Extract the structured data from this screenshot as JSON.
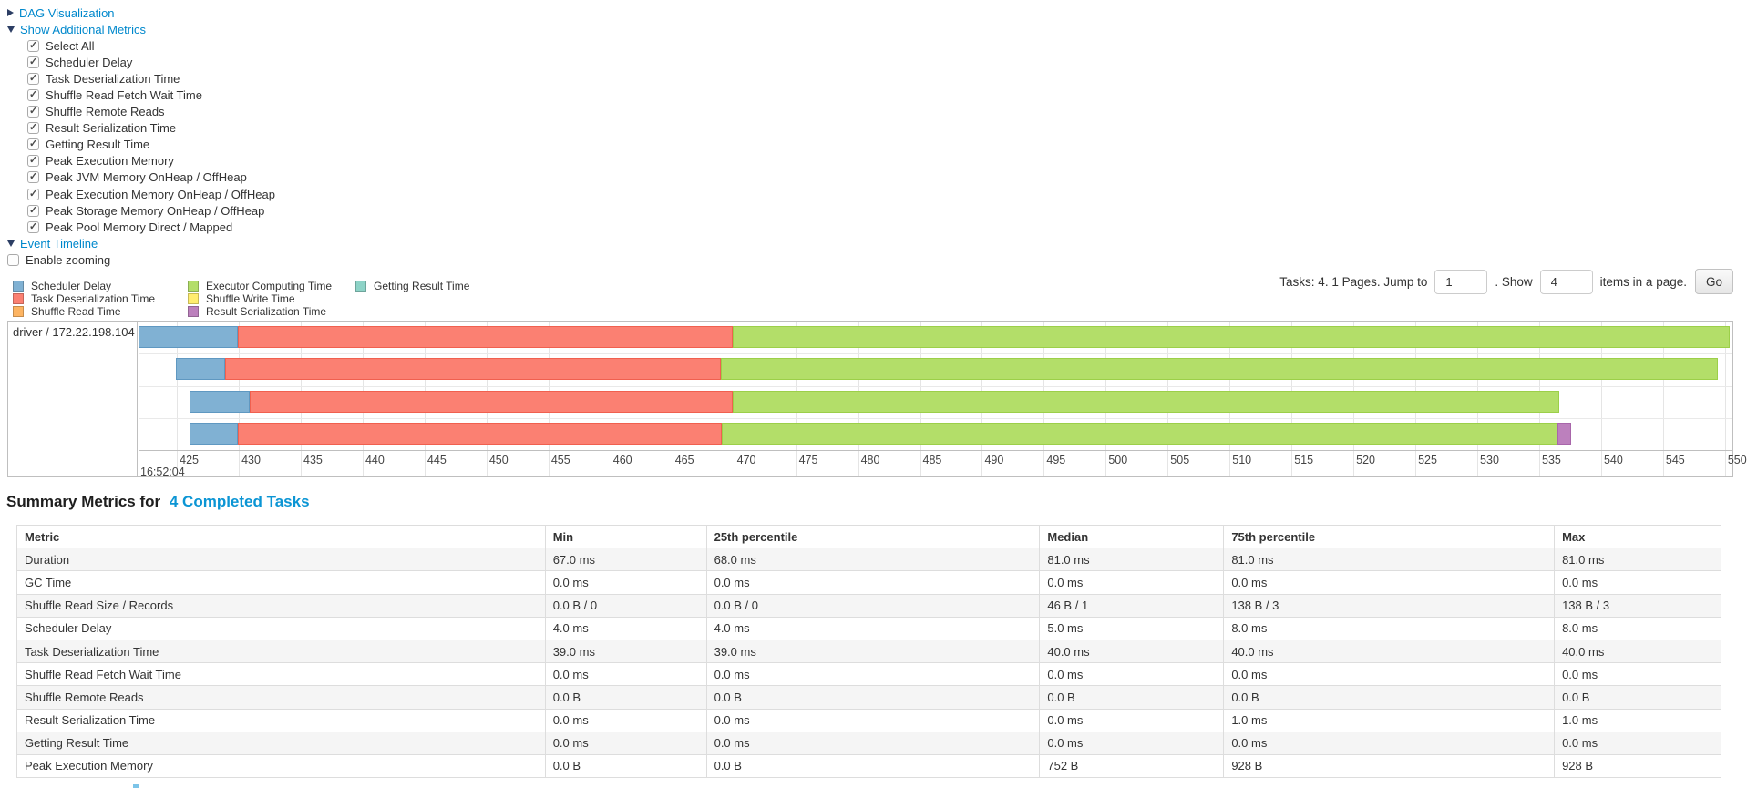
{
  "links": {
    "dag": "DAG Visualization",
    "metrics": "Show Additional Metrics",
    "timeline": "Event Timeline"
  },
  "metric_checkboxes": [
    "Select All",
    "Scheduler Delay",
    "Task Deserialization Time",
    "Shuffle Read Fetch Wait Time",
    "Shuffle Remote Reads",
    "Result Serialization Time",
    "Getting Result Time",
    "Peak Execution Memory",
    "Peak JVM Memory OnHeap / OffHeap",
    "Peak Execution Memory OnHeap / OffHeap",
    "Peak Storage Memory OnHeap / OffHeap",
    "Peak Pool Memory Direct / Mapped"
  ],
  "enable_zooming_label": "Enable zooming",
  "legend": {
    "columns": [
      [
        {
          "label": "Scheduler Delay",
          "color": "#80B1D3"
        },
        {
          "label": "Task Deserialization Time",
          "color": "#FB8072"
        },
        {
          "label": "Shuffle Read Time",
          "color": "#FDB462"
        }
      ],
      [
        {
          "label": "Executor Computing Time",
          "color": "#B3DE69"
        },
        {
          "label": "Shuffle Write Time",
          "color": "#FFED6F"
        },
        {
          "label": "Result Serialization Time",
          "color": "#BC80BD"
        }
      ],
      [
        {
          "label": "Getting Result Time",
          "color": "#8DD3C7"
        }
      ]
    ]
  },
  "pagination": {
    "tasks_text": "Tasks: 4. 1 Pages. Jump to",
    "jump_value": "1",
    "show_text": ". Show",
    "show_value": "4",
    "items_text": "items in a page.",
    "go_label": "Go"
  },
  "chart_data": {
    "type": "timeline",
    "row_label": "driver / 172.22.198.104",
    "axis": {
      "domain_min": 421.9,
      "domain_max": 550.6,
      "tick_start": 425,
      "tick_end": 550,
      "tick_step": 5,
      "major_label": "16:52:04"
    },
    "series_colors": {
      "scheduler_delay": "#80B1D3",
      "task_deserialization": "#FB8072",
      "shuffle_read": "#FDB462",
      "executor_computing": "#B3DE69",
      "shuffle_write": "#FFED6F",
      "result_serialization": "#BC80BD",
      "getting_result": "#8DD3C7"
    },
    "tasks": [
      {
        "segments": [
          {
            "type": "scheduler_delay",
            "start": 421.9,
            "end": 429.9
          },
          {
            "type": "task_deserialization",
            "start": 429.9,
            "end": 469.9
          },
          {
            "type": "executor_computing",
            "start": 469.9,
            "end": 550.4
          }
        ]
      },
      {
        "segments": [
          {
            "type": "scheduler_delay",
            "start": 424.9,
            "end": 428.9
          },
          {
            "type": "task_deserialization",
            "start": 428.9,
            "end": 468.9
          },
          {
            "type": "executor_computing",
            "start": 468.9,
            "end": 549.4
          }
        ]
      },
      {
        "segments": [
          {
            "type": "scheduler_delay",
            "start": 426.0,
            "end": 430.9
          },
          {
            "type": "task_deserialization",
            "start": 430.9,
            "end": 469.9
          },
          {
            "type": "executor_computing",
            "start": 469.9,
            "end": 536.6
          }
        ]
      },
      {
        "segments": [
          {
            "type": "scheduler_delay",
            "start": 426.0,
            "end": 429.9
          },
          {
            "type": "task_deserialization",
            "start": 429.9,
            "end": 469.0
          },
          {
            "type": "executor_computing",
            "start": 469.0,
            "end": 536.5
          },
          {
            "type": "result_serialization",
            "start": 536.5,
            "end": 537.6
          }
        ]
      }
    ]
  },
  "summary": {
    "title_prefix": "Summary Metrics for",
    "title_link": "4 Completed Tasks",
    "headers": [
      "Metric",
      "Min",
      "25th percentile",
      "Median",
      "75th percentile",
      "Max"
    ],
    "rows": [
      [
        "Duration",
        "67.0 ms",
        "68.0 ms",
        "81.0 ms",
        "81.0 ms",
        "81.0 ms"
      ],
      [
        "GC Time",
        "0.0 ms",
        "0.0 ms",
        "0.0 ms",
        "0.0 ms",
        "0.0 ms"
      ],
      [
        "Shuffle Read Size / Records",
        "0.0 B / 0",
        "0.0 B / 0",
        "46 B / 1",
        "138 B / 3",
        "138 B / 3"
      ],
      [
        "Scheduler Delay",
        "4.0 ms",
        "4.0 ms",
        "5.0 ms",
        "8.0 ms",
        "8.0 ms"
      ],
      [
        "Task Deserialization Time",
        "39.0 ms",
        "39.0 ms",
        "40.0 ms",
        "40.0 ms",
        "40.0 ms"
      ],
      [
        "Shuffle Read Fetch Wait Time",
        "0.0 ms",
        "0.0 ms",
        "0.0 ms",
        "0.0 ms",
        "0.0 ms"
      ],
      [
        "Shuffle Remote Reads",
        "0.0 B",
        "0.0 B",
        "0.0 B",
        "0.0 B",
        "0.0 B"
      ],
      [
        "Result Serialization Time",
        "0.0 ms",
        "0.0 ms",
        "0.0 ms",
        "1.0 ms",
        "1.0 ms"
      ],
      [
        "Getting Result Time",
        "0.0 ms",
        "0.0 ms",
        "0.0 ms",
        "0.0 ms",
        "0.0 ms"
      ],
      [
        "Peak Execution Memory",
        "0.0 B",
        "0.0 B",
        "752 B",
        "928 B",
        "928 B"
      ]
    ]
  },
  "colors": {
    "link": "#0088cc",
    "grid": "#e5e5e5",
    "frame": "#bfbfbf"
  }
}
